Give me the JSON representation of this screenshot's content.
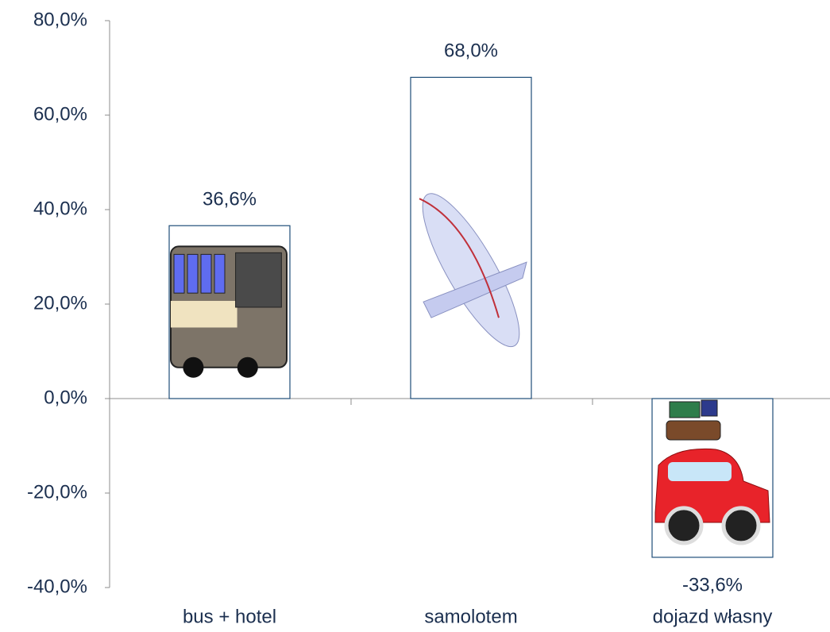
{
  "chart_data": {
    "type": "bar",
    "categories": [
      "bus + hotel",
      "samolotem",
      "dojazd własny"
    ],
    "values": [
      36.6,
      68.0,
      -33.6
    ],
    "value_labels": [
      "36,6%",
      "68,0%",
      "-33,6%"
    ],
    "color": "#1f4e79",
    "ylim": [
      -40,
      80
    ],
    "yticks": [
      {
        "value": -40,
        "label": "-40,0%"
      },
      {
        "value": -20,
        "label": "-20,0%"
      },
      {
        "value": 0,
        "label": "0,0%"
      },
      {
        "value": 20,
        "label": "20,0%"
      },
      {
        "value": 40,
        "label": "40,0%"
      },
      {
        "value": 60,
        "label": "60,0%"
      },
      {
        "value": 80,
        "label": "80,0%"
      }
    ],
    "grid": false
  }
}
